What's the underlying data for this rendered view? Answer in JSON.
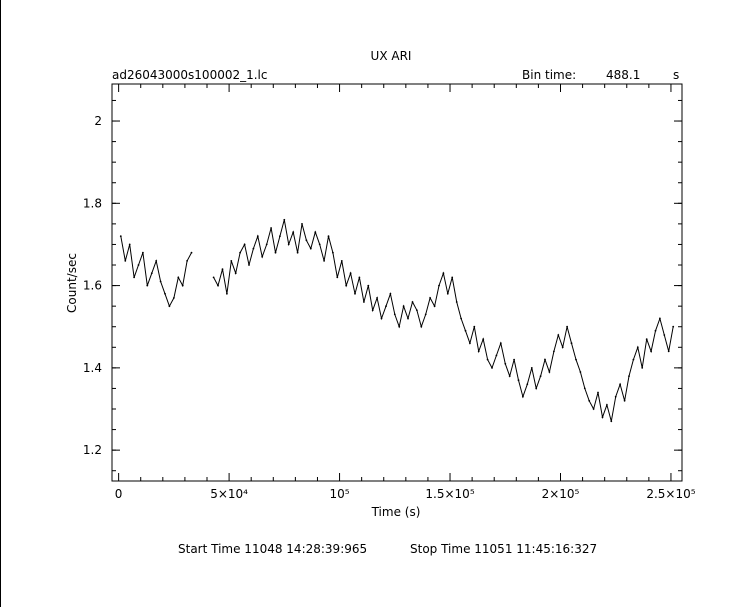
{
  "chart_data": {
    "type": "line",
    "title": "UX ARI",
    "file_label": "ad26043000s100002_1.lc",
    "bin_time_label": "Bin time:",
    "bin_time_value": "488.1",
    "bin_time_unit": "s",
    "xlabel": "Time (s)",
    "ylabel": "Count/sec",
    "xlim": [
      -3000,
      255000
    ],
    "ylim": [
      1.125,
      2.09
    ],
    "grid": false,
    "y_ticks": [
      {
        "value": 1.2,
        "label": "1.2"
      },
      {
        "value": 1.4,
        "label": "1.4"
      },
      {
        "value": 1.6,
        "label": "1.6"
      },
      {
        "value": 1.8,
        "label": "1.8"
      },
      {
        "value": 2.0,
        "label": "2"
      }
    ],
    "x_ticks": [
      {
        "value": 0,
        "label": "0"
      },
      {
        "value": 50000,
        "label": "5×10⁴"
      },
      {
        "value": 100000,
        "label": "10⁵"
      },
      {
        "value": 150000,
        "label": "1.5×10⁵"
      },
      {
        "value": 200000,
        "label": "2×10⁵"
      },
      {
        "value": 250000,
        "label": "2.5×10⁵"
      }
    ],
    "series": [
      {
        "color": "#000000",
        "segments": [
          {
            "x": [
              1000,
              3000,
              5000,
              7000,
              9000,
              11000,
              13000,
              15000,
              17000,
              19000,
              21000,
              23000,
              25000,
              27000,
              29000,
              31000,
              33000
            ],
            "y": [
              1.72,
              1.66,
              1.7,
              1.62,
              1.65,
              1.68,
              1.6,
              1.63,
              1.66,
              1.61,
              1.58,
              1.55,
              1.57,
              1.62,
              1.6,
              1.66,
              1.68
            ]
          },
          {
            "x": [
              43000,
              45000,
              47000,
              49000,
              51000,
              53000,
              55000,
              57000,
              59000,
              61000,
              63000,
              65000,
              67000,
              69000,
              71000,
              73000,
              75000,
              77000,
              79000,
              81000,
              83000,
              85000,
              87000,
              89000,
              91000,
              93000,
              95000,
              97000,
              99000,
              101000,
              103000,
              105000,
              107000,
              109000,
              111000,
              113000,
              115000,
              117000,
              119000,
              121000,
              123000,
              125000,
              127000,
              129000,
              131000,
              133000,
              135000,
              137000,
              139000,
              141000,
              143000,
              145000,
              147000,
              149000,
              151000,
              153000,
              155000,
              157000,
              159000,
              161000,
              163000,
              165000,
              167000,
              169000,
              171000,
              173000,
              175000,
              177000,
              179000,
              181000,
              183000,
              185000,
              187000,
              189000,
              191000,
              193000,
              195000,
              197000,
              199000,
              201000,
              203000,
              205000,
              207000,
              209000,
              211000,
              213000,
              215000,
              217000,
              219000,
              221000,
              223000,
              225000,
              227000,
              229000,
              231000,
              233000,
              235000,
              237000,
              239000,
              241000,
              243000,
              245000,
              247000,
              249000,
              251000
            ],
            "y": [
              1.62,
              1.6,
              1.64,
              1.58,
              1.66,
              1.63,
              1.68,
              1.7,
              1.65,
              1.69,
              1.72,
              1.67,
              1.7,
              1.74,
              1.68,
              1.72,
              1.76,
              1.7,
              1.73,
              1.68,
              1.75,
              1.71,
              1.69,
              1.73,
              1.7,
              1.66,
              1.72,
              1.68,
              1.62,
              1.66,
              1.6,
              1.63,
              1.58,
              1.62,
              1.56,
              1.6,
              1.54,
              1.57,
              1.52,
              1.55,
              1.58,
              1.53,
              1.5,
              1.55,
              1.52,
              1.56,
              1.54,
              1.5,
              1.53,
              1.57,
              1.55,
              1.6,
              1.63,
              1.58,
              1.62,
              1.56,
              1.52,
              1.49,
              1.46,
              1.5,
              1.44,
              1.47,
              1.42,
              1.4,
              1.43,
              1.46,
              1.41,
              1.38,
              1.42,
              1.37,
              1.33,
              1.36,
              1.4,
              1.35,
              1.38,
              1.42,
              1.39,
              1.44,
              1.48,
              1.45,
              1.5,
              1.46,
              1.42,
              1.39,
              1.35,
              1.32,
              1.3,
              1.34,
              1.28,
              1.31,
              1.27,
              1.33,
              1.36,
              1.32,
              1.38,
              1.42,
              1.45,
              1.4,
              1.47,
              1.44,
              1.49,
              1.52,
              1.48,
              1.44,
              1.5
            ]
          }
        ]
      }
    ],
    "footer_left": "Start Time 11048 14:28:39:965",
    "footer_right": "Stop Time 11051 11:45:16:327"
  }
}
